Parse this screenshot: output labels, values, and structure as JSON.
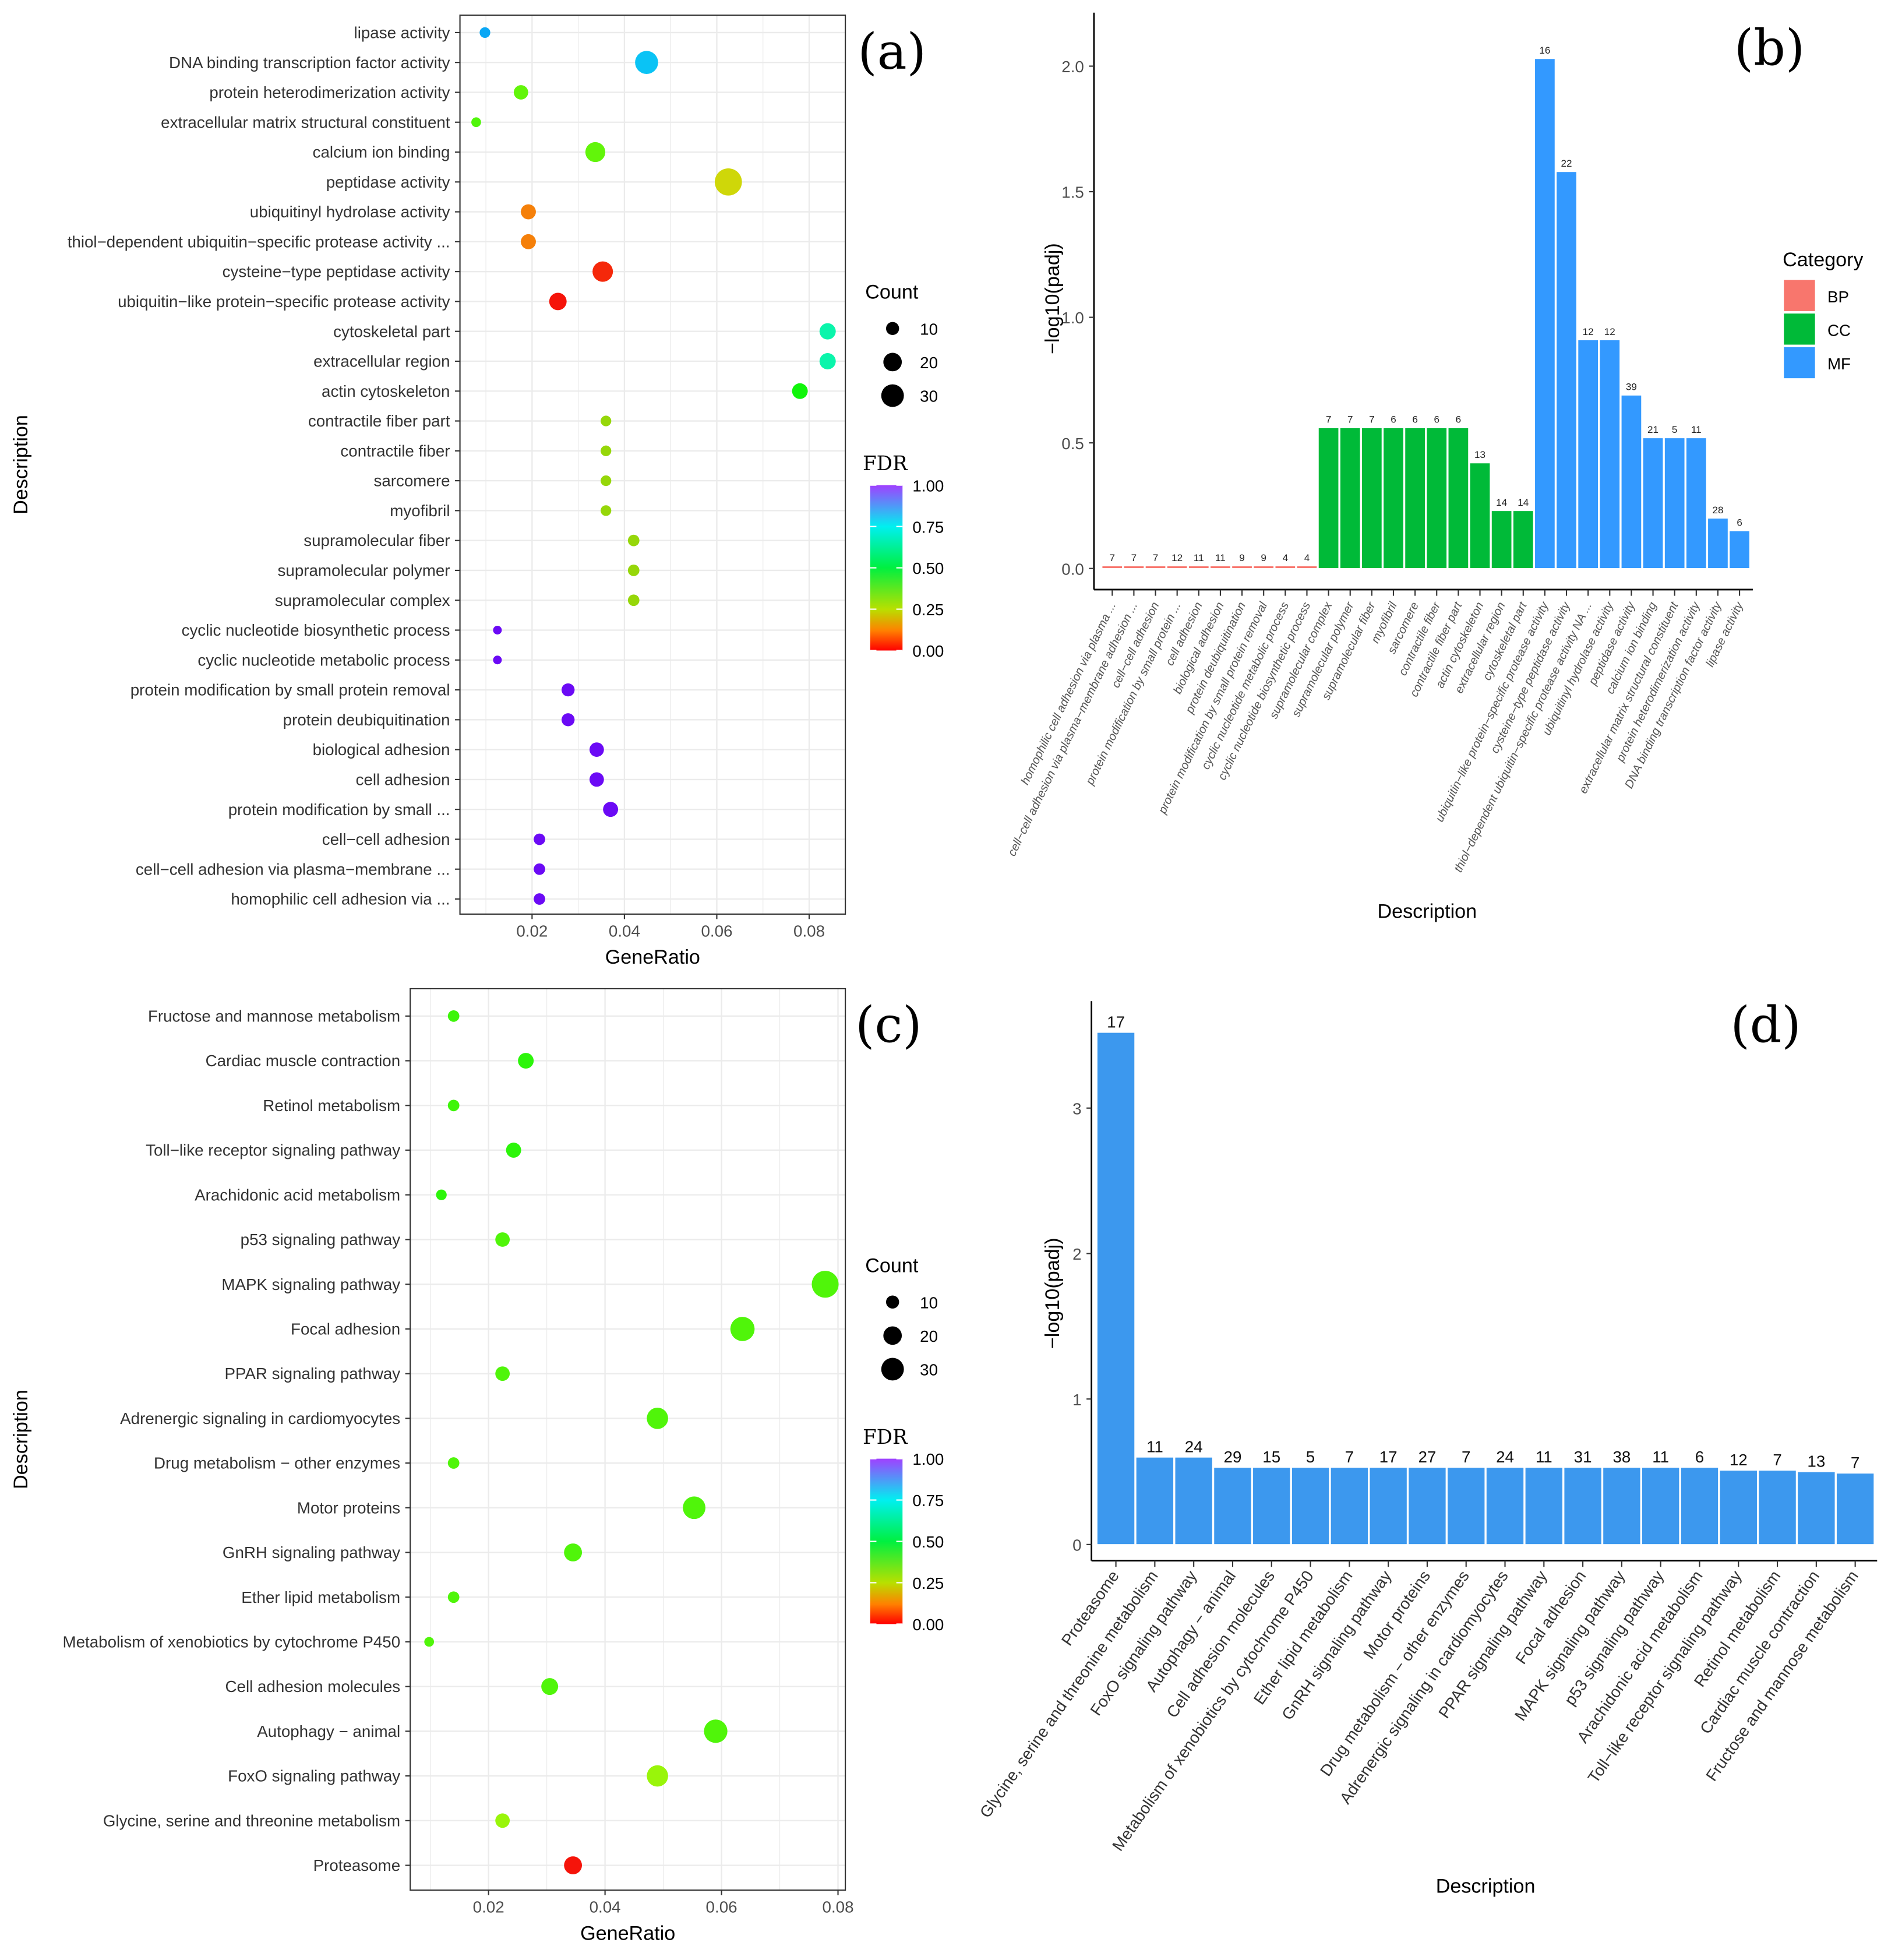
{
  "colors": {
    "BP": "#F8766D",
    "CC": "#00BA38",
    "MF": "#3399FF",
    "D": "#3C98EE"
  },
  "chart_data": [
    {
      "panel": "(a)",
      "type": "scatter",
      "xlabel": "GeneRatio",
      "ylabel": "Description",
      "xticks": [
        "0.02",
        "0.04",
        "0.06",
        "0.08"
      ],
      "xtick_values": [
        0.02,
        0.04,
        0.06,
        0.08
      ],
      "size_legend": {
        "title": "Count",
        "values": [
          10,
          20,
          30
        ]
      },
      "color_legend": {
        "title": "FDR",
        "ticks": [
          "1.00",
          "0.75",
          "0.50",
          "0.25",
          "0.00"
        ]
      },
      "points": [
        {
          "term": "lipase activity",
          "x": 0.0098,
          "count": 6,
          "fdr": 0.8
        },
        {
          "term": "DNA binding transcription factor activity",
          "x": 0.0448,
          "count": 28,
          "fdr": 0.78
        },
        {
          "term": "protein heterodimerization activity",
          "x": 0.0176,
          "count": 11,
          "fdr": 0.36
        },
        {
          "term": "extracellular matrix structural constituent",
          "x": 0.0079,
          "count": 5,
          "fdr": 0.38
        },
        {
          "term": "calcium ion binding",
          "x": 0.0337,
          "count": 21,
          "fdr": 0.36
        },
        {
          "term": "peptidase activity",
          "x": 0.0625,
          "count": 39,
          "fdr": 0.22
        },
        {
          "term": "ubiquitinyl hydrolase activity",
          "x": 0.0192,
          "count": 12,
          "fdr": 0.12
        },
        {
          "term": "thiol−dependent ubiquitin−specific protease activity ...",
          "x": 0.0192,
          "count": 12,
          "fdr": 0.12
        },
        {
          "term": "cysteine−type peptidase activity",
          "x": 0.0353,
          "count": 22,
          "fdr": 0.03
        },
        {
          "term": "ubiquitin−like protein−specific protease activity",
          "x": 0.0256,
          "count": 16,
          "fdr": 0.01
        },
        {
          "term": "cytoskeletal part",
          "x": 0.084,
          "count": 14,
          "fdr": 0.65
        },
        {
          "term": "extracellular region",
          "x": 0.084,
          "count": 14,
          "fdr": 0.65
        },
        {
          "term": "actin cytoskeleton",
          "x": 0.078,
          "count": 13,
          "fdr": 0.45
        },
        {
          "term": "contractile fiber part",
          "x": 0.036,
          "count": 6,
          "fdr": 0.28
        },
        {
          "term": "contractile fiber",
          "x": 0.036,
          "count": 6,
          "fdr": 0.28
        },
        {
          "term": "sarcomere",
          "x": 0.036,
          "count": 6,
          "fdr": 0.28
        },
        {
          "term": "myofibril",
          "x": 0.036,
          "count": 6,
          "fdr": 0.28
        },
        {
          "term": "supramolecular fiber",
          "x": 0.042,
          "count": 7,
          "fdr": 0.28
        },
        {
          "term": "supramolecular polymer",
          "x": 0.042,
          "count": 7,
          "fdr": 0.28
        },
        {
          "term": "supramolecular complex",
          "x": 0.042,
          "count": 7,
          "fdr": 0.28
        },
        {
          "term": "cyclic nucleotide biosynthetic process",
          "x": 0.0125,
          "count": 4,
          "fdr": 0.98
        },
        {
          "term": "cyclic nucleotide metabolic process",
          "x": 0.0125,
          "count": 4,
          "fdr": 0.98
        },
        {
          "term": "protein modification by small protein removal",
          "x": 0.0278,
          "count": 9,
          "fdr": 0.98
        },
        {
          "term": "protein deubiquitination",
          "x": 0.0278,
          "count": 9,
          "fdr": 0.98
        },
        {
          "term": "biological adhesion",
          "x": 0.034,
          "count": 11,
          "fdr": 0.98
        },
        {
          "term": "cell adhesion",
          "x": 0.034,
          "count": 11,
          "fdr": 0.98
        },
        {
          "term": "protein modification by small ...",
          "x": 0.037,
          "count": 12,
          "fdr": 0.98
        },
        {
          "term": "cell−cell adhesion",
          "x": 0.0216,
          "count": 7,
          "fdr": 0.98
        },
        {
          "term": "cell−cell adhesion via plasma−membrane ...",
          "x": 0.0216,
          "count": 7,
          "fdr": 0.98
        },
        {
          "term": "homophilic cell adhesion via ...",
          "x": 0.0216,
          "count": 7,
          "fdr": 0.98
        }
      ]
    },
    {
      "panel": "(b)",
      "type": "bar",
      "xlabel": "Description",
      "ylabel": "−log10(padj)",
      "yticks": [
        "0.0",
        "0.5",
        "1.0",
        "1.5",
        "2.0"
      ],
      "ylim": [
        0,
        2.1
      ],
      "legend": {
        "title": "Category",
        "entries": [
          "BP",
          "CC",
          "MF"
        ]
      },
      "bars": [
        {
          "term": "homophilic cell adhesion via plasma ...",
          "cat": "BP",
          "value": 0.01,
          "count": "7"
        },
        {
          "term": "cell−cell adhesion via plasma−membrane adhesion ...",
          "cat": "BP",
          "value": 0.01,
          "count": "7"
        },
        {
          "term": "cell−cell adhesion",
          "cat": "BP",
          "value": 0.01,
          "count": "7"
        },
        {
          "term": "protein modification by small protein ...",
          "cat": "BP",
          "value": 0.01,
          "count": "12"
        },
        {
          "term": "cell adhesion",
          "cat": "BP",
          "value": 0.01,
          "count": "11"
        },
        {
          "term": "biological adhesion",
          "cat": "BP",
          "value": 0.01,
          "count": "11"
        },
        {
          "term": "protein deubiquitination",
          "cat": "BP",
          "value": 0.01,
          "count": "9"
        },
        {
          "term": "protein modification by small protein removal",
          "cat": "BP",
          "value": 0.01,
          "count": "9"
        },
        {
          "term": "cyclic nucleotide metabolic process",
          "cat": "BP",
          "value": 0.01,
          "count": "4"
        },
        {
          "term": "cyclic nucleotide biosynthetic process",
          "cat": "BP",
          "value": 0.01,
          "count": "4"
        },
        {
          "term": "supramolecular complex",
          "cat": "CC",
          "value": 0.56,
          "count": "7"
        },
        {
          "term": "supramolecular polymer",
          "cat": "CC",
          "value": 0.56,
          "count": "7"
        },
        {
          "term": "supramolecular fiber",
          "cat": "CC",
          "value": 0.56,
          "count": "7"
        },
        {
          "term": "myofibril",
          "cat": "CC",
          "value": 0.56,
          "count": "6"
        },
        {
          "term": "sarcomere",
          "cat": "CC",
          "value": 0.56,
          "count": "6"
        },
        {
          "term": "contractile fiber",
          "cat": "CC",
          "value": 0.56,
          "count": "6"
        },
        {
          "term": "contractile fiber part",
          "cat": "CC",
          "value": 0.56,
          "count": "6"
        },
        {
          "term": "actin cytoskeleton",
          "cat": "CC",
          "value": 0.42,
          "count": "13"
        },
        {
          "term": "extracellular region",
          "cat": "CC",
          "value": 0.23,
          "count": "14"
        },
        {
          "term": "cytoskeletal part",
          "cat": "CC",
          "value": 0.23,
          "count": "14"
        },
        {
          "term": "ubiquitin−like protein−specific protease activity",
          "cat": "MF",
          "value": 2.03,
          "count": "16"
        },
        {
          "term": "cysteine−type peptidase activity",
          "cat": "MF",
          "value": 1.58,
          "count": "22"
        },
        {
          "term": "thiol−dependent ubiquitin−specific protease activity NA ...",
          "cat": "MF",
          "value": 0.91,
          "count": "12"
        },
        {
          "term": "ubiquitinyl hydrolase activity",
          "cat": "MF",
          "value": 0.91,
          "count": "12"
        },
        {
          "term": "peptidase activity",
          "cat": "MF",
          "value": 0.69,
          "count": "39"
        },
        {
          "term": "calcium ion binding",
          "cat": "MF",
          "value": 0.52,
          "count": "21"
        },
        {
          "term": "extracellular matrix structural constituent",
          "cat": "MF",
          "value": 0.52,
          "count": "5"
        },
        {
          "term": "protein heterodimerization activity",
          "cat": "MF",
          "value": 0.52,
          "count": "11"
        },
        {
          "term": "DNA binding transcription factor activity",
          "cat": "MF",
          "value": 0.2,
          "count": "28"
        },
        {
          "term": "lipase activity",
          "cat": "MF",
          "value": 0.15,
          "count": "6"
        }
      ]
    },
    {
      "panel": "(c)",
      "type": "scatter",
      "xlabel": "GeneRatio",
      "ylabel": "Description",
      "xticks": [
        "0.02",
        "0.04",
        "0.06",
        "0.08"
      ],
      "xtick_values": [
        0.02,
        0.04,
        0.06,
        0.08
      ],
      "size_legend": {
        "title": "Count",
        "values": [
          10,
          20,
          30
        ]
      },
      "color_legend": {
        "title": "FDR",
        "ticks": [
          "1.00",
          "0.75",
          "0.50",
          "0.25",
          "0.00"
        ]
      },
      "points": [
        {
          "term": "Fructose and mannose metabolism",
          "x": 0.014,
          "count": 7,
          "fdr": 0.4
        },
        {
          "term": "Cardiac muscle contraction",
          "x": 0.0264,
          "count": 13,
          "fdr": 0.42
        },
        {
          "term": "Retinol metabolism",
          "x": 0.014,
          "count": 7,
          "fdr": 0.4
        },
        {
          "term": "Toll−like receptor signaling pathway",
          "x": 0.0243,
          "count": 12,
          "fdr": 0.42
        },
        {
          "term": "Arachidonic acid metabolism",
          "x": 0.0119,
          "count": 6,
          "fdr": 0.42
        },
        {
          "term": "p53 signaling pathway",
          "x": 0.0224,
          "count": 11,
          "fdr": 0.38
        },
        {
          "term": "MAPK signaling pathway",
          "x": 0.0778,
          "count": 38,
          "fdr": 0.38
        },
        {
          "term": "Focal adhesion",
          "x": 0.0636,
          "count": 31,
          "fdr": 0.38
        },
        {
          "term": "PPAR signaling pathway",
          "x": 0.0224,
          "count": 11,
          "fdr": 0.38
        },
        {
          "term": "Adrenergic signaling in cardiomyocytes",
          "x": 0.049,
          "count": 24,
          "fdr": 0.38
        },
        {
          "term": "Drug metabolism − other enzymes",
          "x": 0.014,
          "count": 7,
          "fdr": 0.38
        },
        {
          "term": "Motor proteins",
          "x": 0.0553,
          "count": 27,
          "fdr": 0.38
        },
        {
          "term": "GnRH signaling pathway",
          "x": 0.0345,
          "count": 17,
          "fdr": 0.38
        },
        {
          "term": "Ether lipid metabolism",
          "x": 0.014,
          "count": 7,
          "fdr": 0.38
        },
        {
          "term": "Metabolism of xenobiotics by cytochrome P450",
          "x": 0.0098,
          "count": 5,
          "fdr": 0.38
        },
        {
          "term": "Cell adhesion molecules",
          "x": 0.0305,
          "count": 15,
          "fdr": 0.38
        },
        {
          "term": "Autophagy − animal",
          "x": 0.059,
          "count": 29,
          "fdr": 0.38
        },
        {
          "term": "FoxO signaling pathway",
          "x": 0.049,
          "count": 24,
          "fdr": 0.3
        },
        {
          "term": "Glycine, serine and threonine metabolism",
          "x": 0.0224,
          "count": 11,
          "fdr": 0.3
        },
        {
          "term": "Proteasome",
          "x": 0.0345,
          "count": 17,
          "fdr": 0.01
        }
      ]
    },
    {
      "panel": "(d)",
      "type": "bar",
      "xlabel": "Description",
      "ylabel": "−log10(padj)",
      "yticks": [
        "0",
        "1",
        "2",
        "3"
      ],
      "ylim": [
        0,
        3.8
      ],
      "bars": [
        {
          "term": "Proteasome",
          "value": 3.52,
          "count": "17"
        },
        {
          "term": "Glycine, serine and threonine metabolism",
          "value": 0.6,
          "count": "11"
        },
        {
          "term": "FoxO signaling pathway",
          "value": 0.6,
          "count": "24"
        },
        {
          "term": "Autophagy − animal",
          "value": 0.53,
          "count": "29"
        },
        {
          "term": "Cell adhesion molecules",
          "value": 0.53,
          "count": "15"
        },
        {
          "term": "Metabolism of xenobiotics by cytochrome P450",
          "value": 0.53,
          "count": "5"
        },
        {
          "term": "Ether lipid metabolism",
          "value": 0.53,
          "count": "7"
        },
        {
          "term": "GnRH signaling pathway",
          "value": 0.53,
          "count": "17"
        },
        {
          "term": "Motor proteins",
          "value": 0.53,
          "count": "27"
        },
        {
          "term": "Drug metabolism − other enzymes",
          "value": 0.53,
          "count": "7"
        },
        {
          "term": "Adrenergic signaling in cardiomyocytes",
          "value": 0.53,
          "count": "24"
        },
        {
          "term": "PPAR signaling pathway",
          "value": 0.53,
          "count": "11"
        },
        {
          "term": "Focal adhesion",
          "value": 0.53,
          "count": "31"
        },
        {
          "term": "MAPK signaling pathway",
          "value": 0.53,
          "count": "38"
        },
        {
          "term": "p53 signaling pathway",
          "value": 0.53,
          "count": "11"
        },
        {
          "term": "Arachidonic acid metabolism",
          "value": 0.53,
          "count": "6"
        },
        {
          "term": "Toll−like receptor signaling pathway",
          "value": 0.51,
          "count": "12"
        },
        {
          "term": "Retinol metabolism",
          "value": 0.51,
          "count": "7"
        },
        {
          "term": "Cardiac muscle contraction",
          "value": 0.5,
          "count": "13"
        },
        {
          "term": "Fructose and mannose metabolism",
          "value": 0.49,
          "count": "7"
        }
      ]
    }
  ]
}
